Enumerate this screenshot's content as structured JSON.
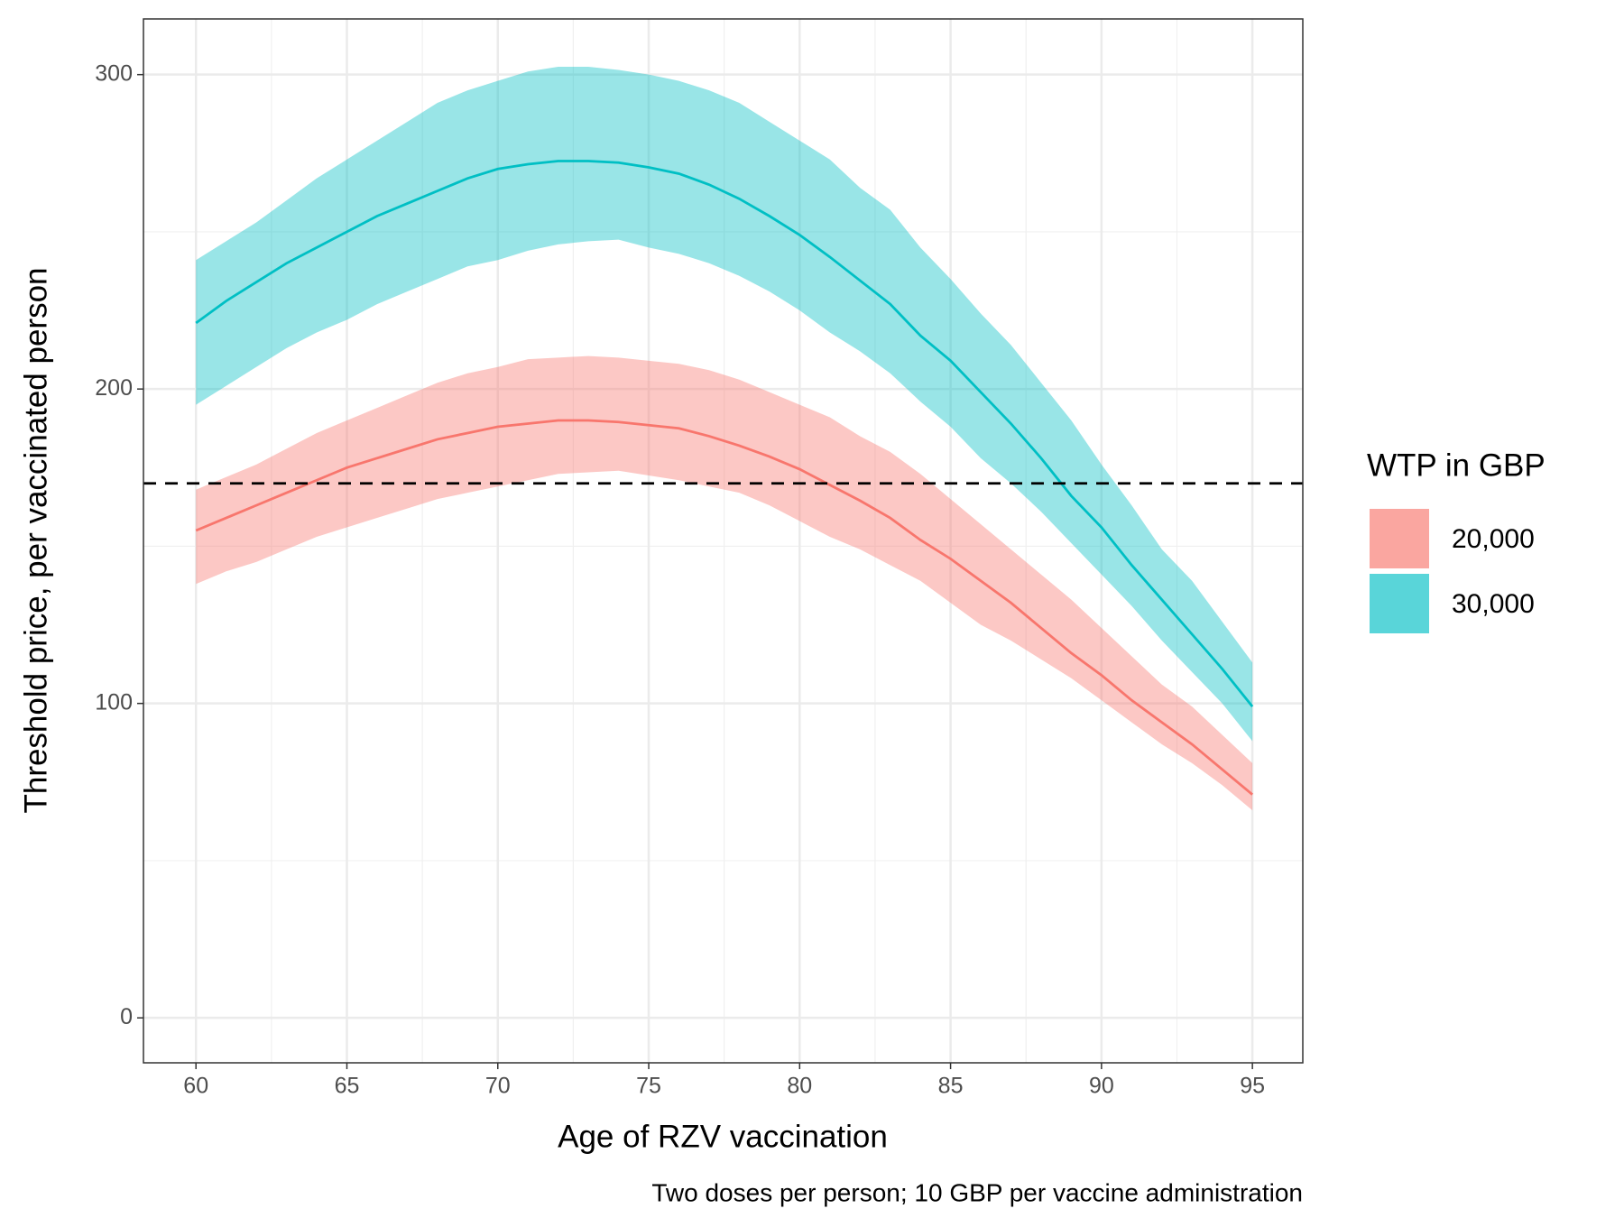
{
  "chart_data": {
    "type": "ribbon-line",
    "xlabel": "Age of RZV vaccination",
    "ylabel": "Threshold price, per vaccinated person",
    "caption": "Two doses per person; 10 GBP per vaccine administration",
    "legend_title": "WTP in GBP",
    "legend_position": "right",
    "grid": true,
    "reference_line": 170,
    "x": [
      60,
      61,
      62,
      63,
      64,
      65,
      66,
      67,
      68,
      69,
      70,
      71,
      72,
      73,
      74,
      75,
      76,
      77,
      78,
      79,
      80,
      81,
      82,
      83,
      84,
      85,
      86,
      87,
      88,
      89,
      90,
      91,
      92,
      93,
      94,
      95
    ],
    "xlim": [
      58.26,
      96.67
    ],
    "xticks": [
      60,
      65,
      70,
      75,
      80,
      85,
      90,
      95
    ],
    "ylim": [
      -14.3,
      317.7
    ],
    "yticks": [
      0,
      100,
      200,
      300
    ],
    "series": [
      {
        "name": "20,000",
        "color": "#F8766D",
        "values": [
          155,
          159,
          163,
          167,
          171,
          175,
          178,
          181,
          184,
          186,
          188,
          189,
          190,
          190,
          189.5,
          188.5,
          187.5,
          185,
          182,
          178.5,
          174.5,
          169.5,
          164.5,
          159,
          152,
          146,
          139,
          132,
          124,
          116,
          109,
          101,
          94,
          87,
          79,
          71
        ],
        "upper": [
          168,
          172,
          176,
          181,
          186,
          190,
          194,
          198,
          202,
          205,
          207,
          209.5,
          210,
          210.5,
          210,
          209,
          208,
          206,
          203,
          199,
          195,
          191,
          185,
          180,
          173,
          165,
          157,
          149,
          141,
          133,
          124,
          115,
          106,
          99,
          90,
          81
        ],
        "lower": [
          138,
          142,
          145,
          149,
          153,
          156,
          159,
          162,
          165,
          167,
          169,
          171,
          173,
          173.5,
          174,
          172.5,
          171,
          169,
          167,
          163,
          158,
          153,
          149,
          144,
          139,
          132,
          125,
          120,
          114,
          108,
          101,
          94,
          87,
          81,
          74,
          66
        ]
      },
      {
        "name": "30,000",
        "color": "#00BFC4",
        "values": [
          221,
          228,
          234,
          240,
          245,
          250,
          255,
          259,
          263,
          267,
          270,
          271.5,
          272.5,
          272.5,
          272,
          270.5,
          268.5,
          265,
          260.5,
          255,
          249,
          242,
          234.5,
          227,
          217,
          209,
          199,
          189,
          178,
          166,
          156,
          144,
          133,
          122,
          111,
          99
        ],
        "upper": [
          241,
          247,
          253,
          260,
          267,
          273,
          279,
          285,
          291,
          295,
          298,
          301,
          302.5,
          302.5,
          301.5,
          300,
          298,
          295,
          291,
          285,
          279,
          273,
          264,
          257,
          245,
          235,
          224,
          214,
          202,
          190,
          176,
          163,
          149,
          139,
          126,
          113
        ],
        "lower": [
          195,
          201,
          207,
          213,
          218,
          222,
          227,
          231,
          235,
          239,
          241,
          244,
          246,
          247,
          247.5,
          245,
          243,
          240,
          236,
          231,
          225,
          218,
          212,
          205,
          196,
          188,
          178,
          170,
          161,
          151,
          141,
          131,
          120,
          110,
          100,
          88
        ]
      }
    ]
  }
}
